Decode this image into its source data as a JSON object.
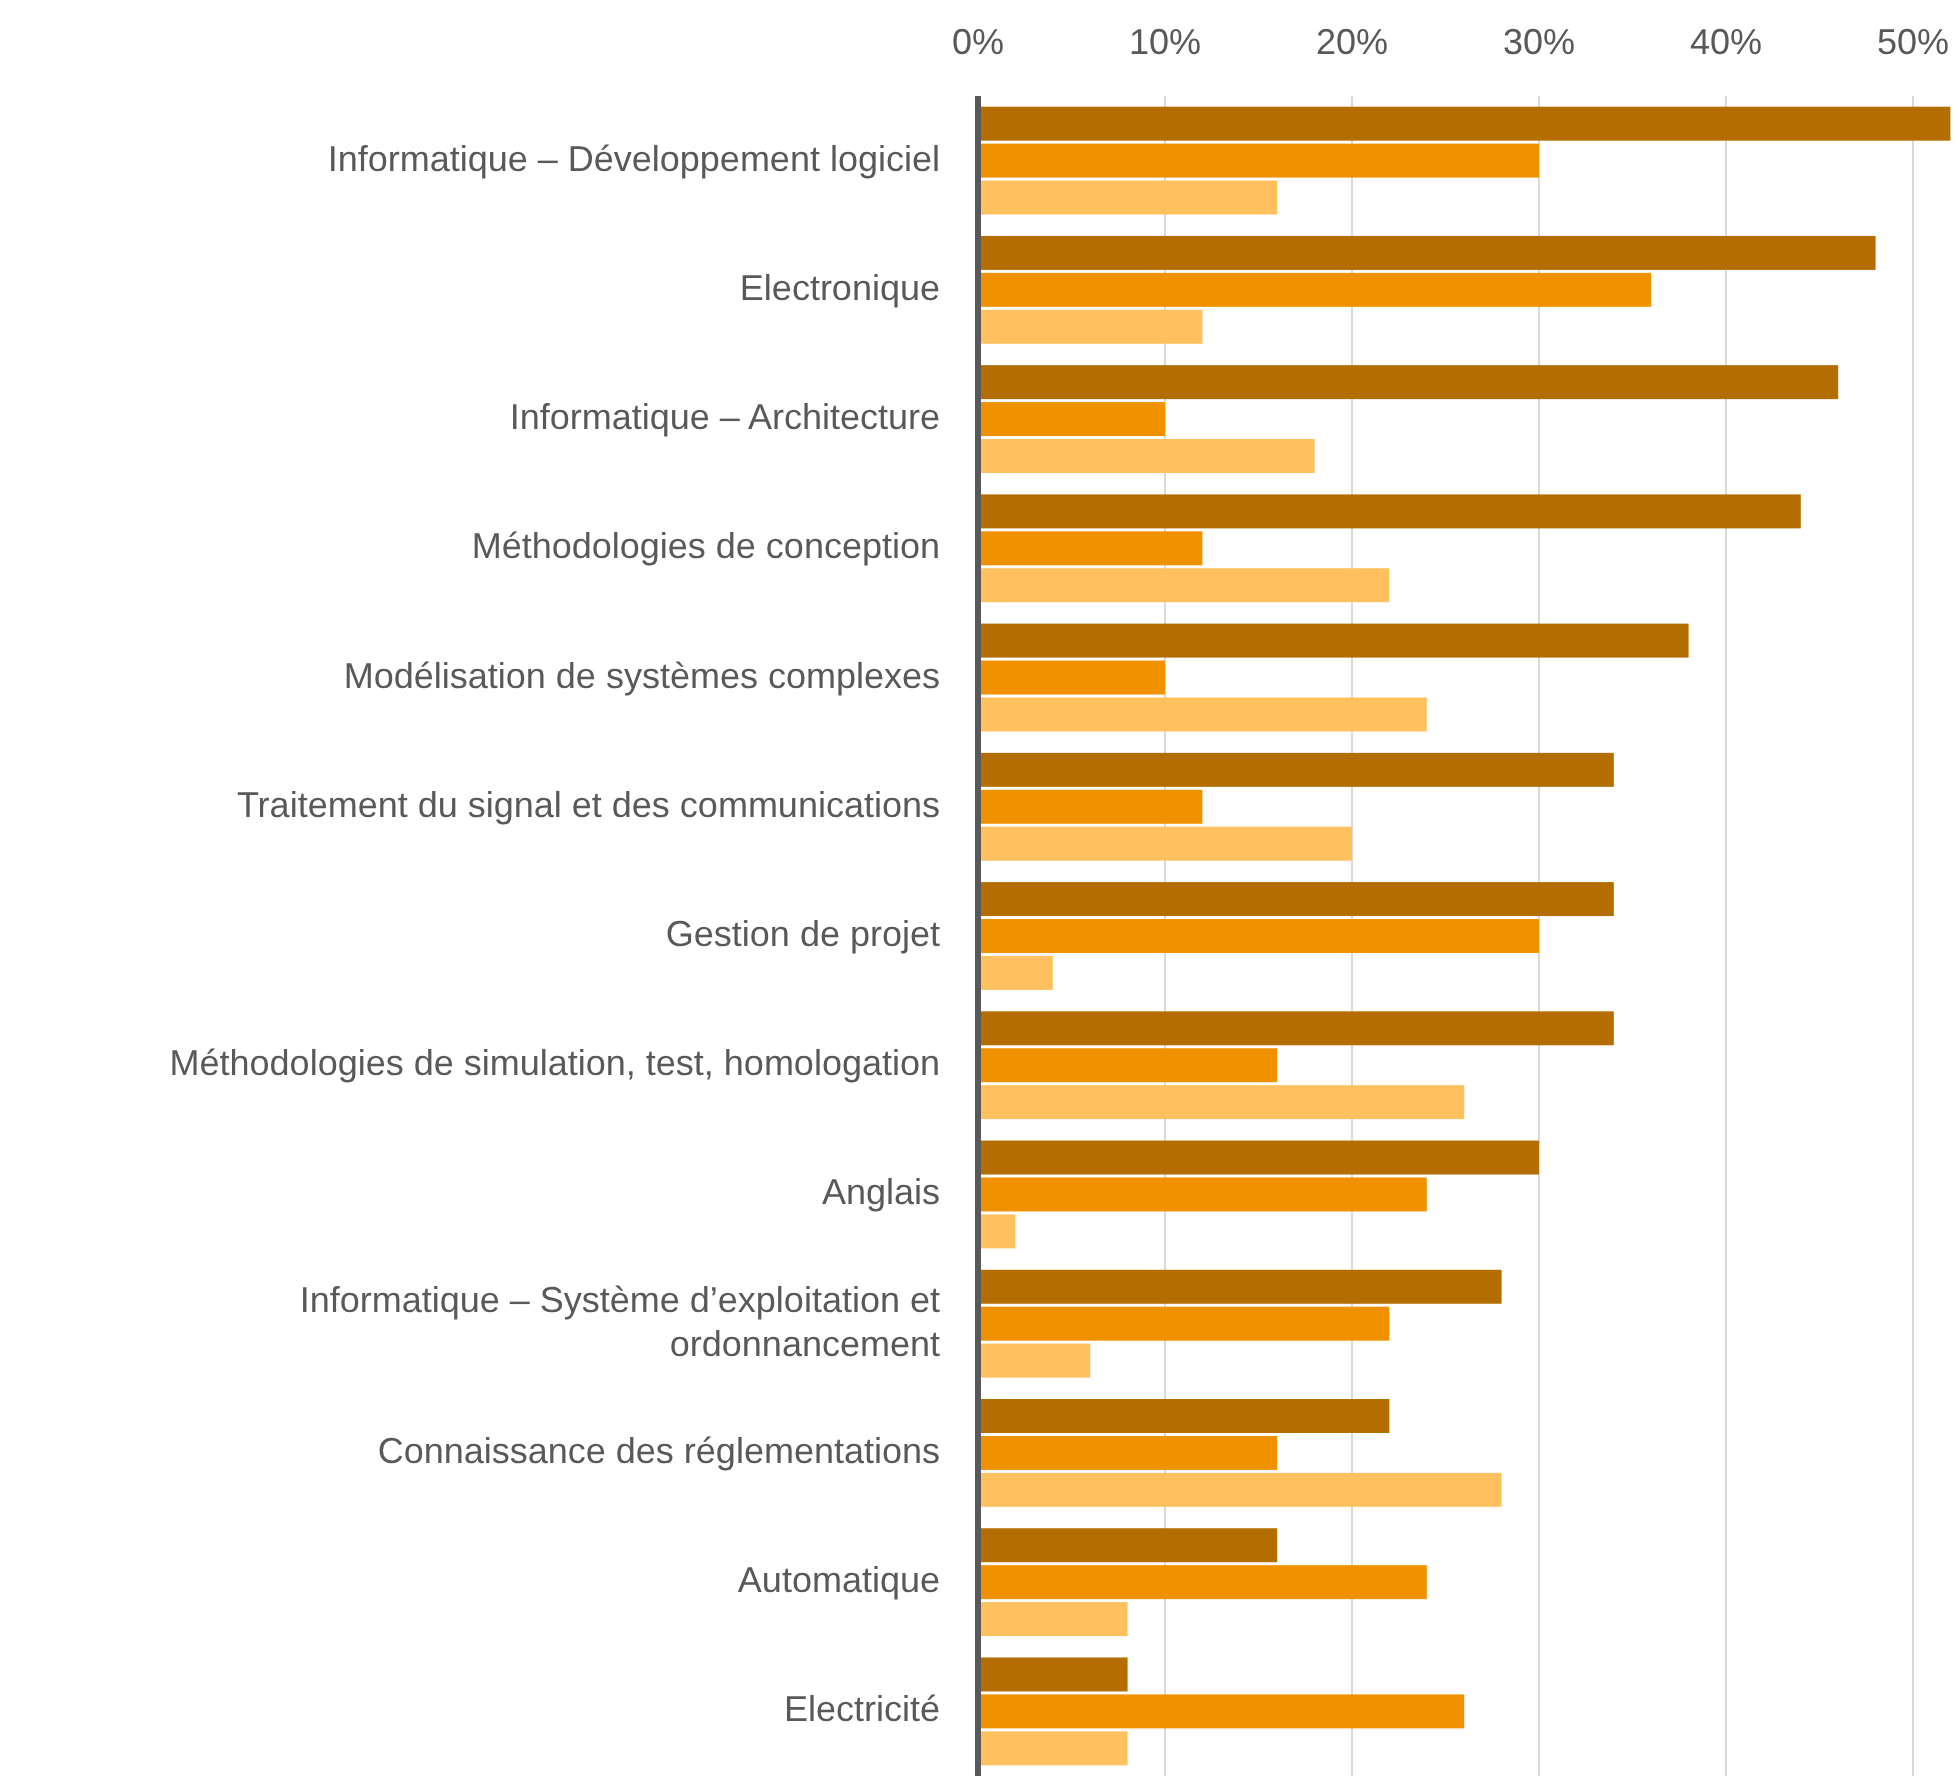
{
  "chart_data": {
    "type": "bar",
    "orientation": "horizontal",
    "categories": [
      "Informatique – Développement logiciel",
      "Electronique",
      "Informatique – Architecture",
      "Méthodologies de conception",
      "Modélisation de systèmes complexes",
      "Traitement du signal et des communications",
      "Gestion de projet",
      "Méthodologies de simulation, test, homologation",
      "Anglais",
      "Informatique – Système d’exploitation et ordonnancement",
      "Connaissance des réglementations",
      "Automatique",
      "Electricité"
    ],
    "series": [
      {
        "color": "#b46e00",
        "values": [
          52,
          48,
          46,
          44,
          38,
          34,
          34,
          34,
          30,
          28,
          22,
          16,
          8
        ]
      },
      {
        "color": "#f09100",
        "values": [
          30,
          36,
          10,
          12,
          10,
          12,
          30,
          16,
          24,
          22,
          16,
          24,
          26
        ]
      },
      {
        "color": "#ffc060",
        "values": [
          16,
          12,
          18,
          22,
          24,
          20,
          4,
          26,
          2,
          6,
          28,
          8,
          8
        ]
      }
    ],
    "xlim": [
      0,
      52.3
    ],
    "xticks": [
      {
        "value": 0,
        "label": "0%"
      },
      {
        "value": 10,
        "label": "10%"
      },
      {
        "value": 20,
        "label": "20%"
      },
      {
        "value": 30,
        "label": "30%"
      },
      {
        "value": 40,
        "label": "40%"
      },
      {
        "value": 50,
        "label": "50%"
      }
    ],
    "grid": "x"
  }
}
